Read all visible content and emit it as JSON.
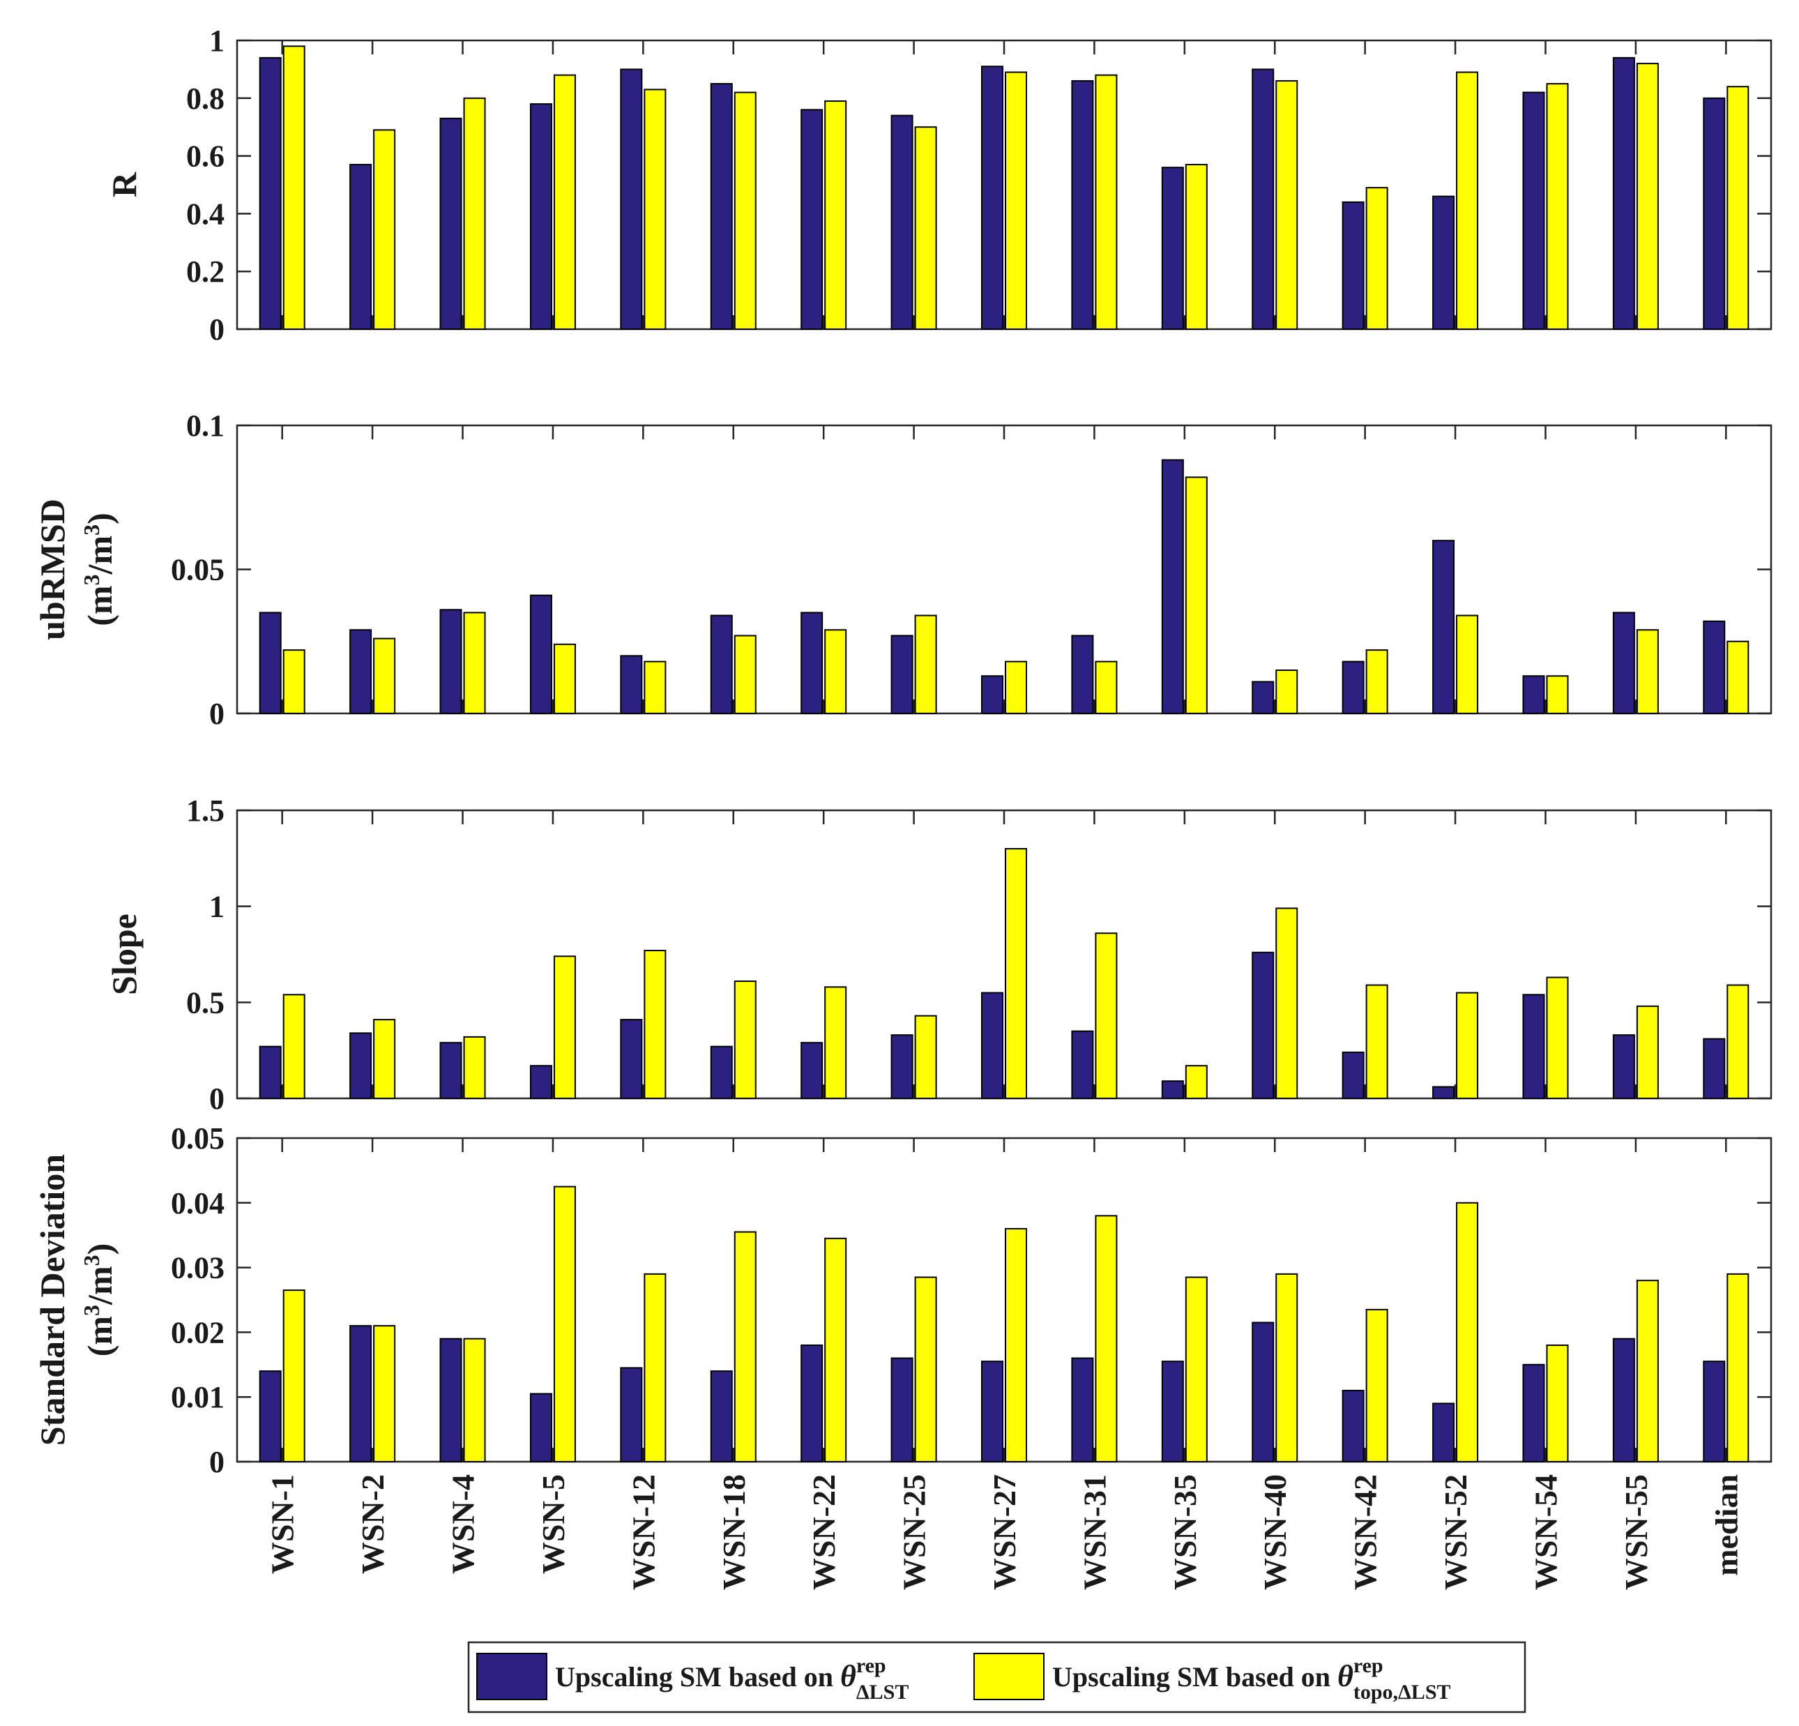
{
  "chart_data": {
    "type": "bar",
    "categories": [
      "WSN-1",
      "WSN-2",
      "WSN-4",
      "WSN-5",
      "WSN-12",
      "WSN-18",
      "WSN-22",
      "WSN-25",
      "WSN-27",
      "WSN-31",
      "WSN-35",
      "WSN-40",
      "WSN-42",
      "WSN-52",
      "WSN-54",
      "WSN-55",
      "median"
    ],
    "series_colors": [
      "#2b2180",
      "#ffff00"
    ],
    "legend": {
      "position": "bottom-center",
      "entries": [
        {
          "prefix": "Upscaling SM based on ",
          "symbol": "θ",
          "sup": "rep",
          "sub": "ΔLST"
        },
        {
          "prefix": "Upscaling SM based on ",
          "symbol": "θ",
          "sup": "rep",
          "sub": "topo,ΔLST"
        }
      ]
    },
    "panels": [
      {
        "ylabel": "R",
        "ylabel_line2": "",
        "ylim": [
          0,
          1
        ],
        "yticks": [
          "0",
          "0.2",
          "0.4",
          "0.6",
          "0.8",
          "1"
        ],
        "ytick_values": [
          0,
          0.2,
          0.4,
          0.6,
          0.8,
          1
        ],
        "series": [
          {
            "name": "Upscaling SM based on θrep ΔLST",
            "values": [
              0.94,
              0.57,
              0.73,
              0.78,
              0.9,
              0.85,
              0.76,
              0.74,
              0.91,
              0.86,
              0.56,
              0.9,
              0.44,
              0.46,
              0.82,
              0.94,
              0.8
            ]
          },
          {
            "name": "Upscaling SM based on θrep topo,ΔLST",
            "values": [
              0.98,
              0.69,
              0.8,
              0.88,
              0.83,
              0.82,
              0.79,
              0.7,
              0.89,
              0.88,
              0.57,
              0.86,
              0.49,
              0.89,
              0.85,
              0.92,
              0.84
            ]
          }
        ]
      },
      {
        "ylabel": "ubRMSD",
        "ylabel_line2": "(m3/m3)",
        "ylim": [
          0,
          0.1
        ],
        "yticks": [
          "0",
          "0.05",
          "0.1"
        ],
        "ytick_values": [
          0,
          0.05,
          0.1
        ],
        "series": [
          {
            "name": "Upscaling SM based on θrep ΔLST",
            "values": [
              0.035,
              0.029,
              0.036,
              0.041,
              0.02,
              0.034,
              0.035,
              0.027,
              0.013,
              0.027,
              0.088,
              0.011,
              0.018,
              0.06,
              0.013,
              0.035,
              0.032
            ]
          },
          {
            "name": "Upscaling SM based on θrep topo,ΔLST",
            "values": [
              0.022,
              0.026,
              0.035,
              0.024,
              0.018,
              0.027,
              0.029,
              0.034,
              0.018,
              0.018,
              0.082,
              0.015,
              0.022,
              0.034,
              0.013,
              0.029,
              0.025
            ]
          }
        ]
      },
      {
        "ylabel": "Slope",
        "ylabel_line2": "",
        "ylim": [
          0,
          1.5
        ],
        "yticks": [
          "0",
          "0.5",
          "1",
          "1.5"
        ],
        "ytick_values": [
          0,
          0.5,
          1,
          1.5
        ],
        "series": [
          {
            "name": "Upscaling SM based on θrep ΔLST",
            "values": [
              0.27,
              0.34,
              0.29,
              0.17,
              0.41,
              0.27,
              0.29,
              0.33,
              0.55,
              0.35,
              0.09,
              0.76,
              0.24,
              0.06,
              0.54,
              0.33,
              0.31
            ]
          },
          {
            "name": "Upscaling SM based on θrep topo,ΔLST",
            "values": [
              0.54,
              0.41,
              0.32,
              0.74,
              0.77,
              0.61,
              0.58,
              0.43,
              1.3,
              0.86,
              0.17,
              0.99,
              0.59,
              0.55,
              0.63,
              0.48,
              0.59
            ]
          }
        ]
      },
      {
        "ylabel": "Standard Deviation",
        "ylabel_line2": "(m3/m3)",
        "ylim": [
          0,
          0.05
        ],
        "yticks": [
          "0",
          "0.01",
          "0.02",
          "0.03",
          "0.04",
          "0.05"
        ],
        "ytick_values": [
          0,
          0.01,
          0.02,
          0.03,
          0.04,
          0.05
        ],
        "series": [
          {
            "name": "Upscaling SM based on θrep ΔLST",
            "values": [
              0.014,
              0.021,
              0.019,
              0.0105,
              0.0145,
              0.014,
              0.018,
              0.016,
              0.0155,
              0.016,
              0.0155,
              0.0215,
              0.011,
              0.009,
              0.015,
              0.019,
              0.0155
            ]
          },
          {
            "name": "Upscaling SM based on θrep topo,ΔLST",
            "values": [
              0.0265,
              0.021,
              0.019,
              0.0425,
              0.029,
              0.0355,
              0.0345,
              0.0285,
              0.036,
              0.038,
              0.0285,
              0.029,
              0.0235,
              0.04,
              0.018,
              0.028,
              0.029
            ]
          }
        ]
      }
    ]
  }
}
